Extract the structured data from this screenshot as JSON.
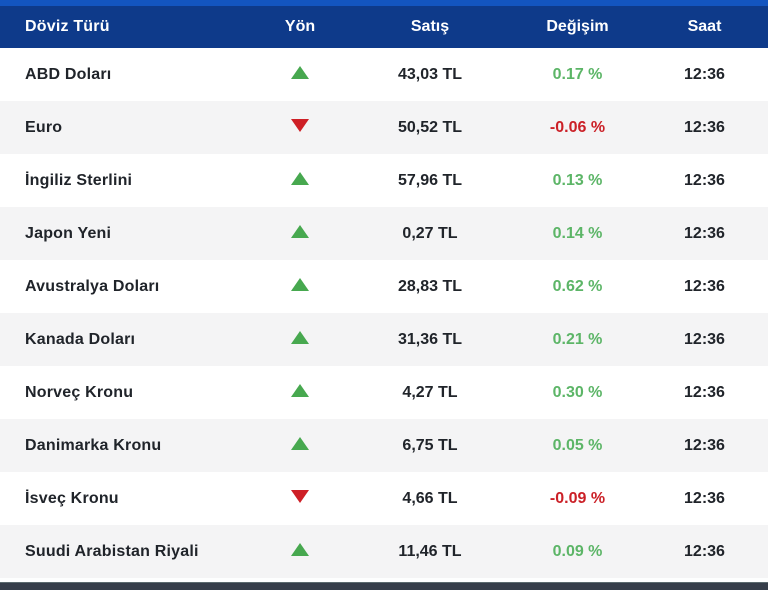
{
  "table": {
    "headers": {
      "currency": "Döviz Türü",
      "direction": "Yön",
      "price": "Satış",
      "change": "Değişim",
      "time": "Saat"
    },
    "rows": [
      {
        "currency": "ABD Doları",
        "direction": "up",
        "price": "43,03 TL",
        "change": "0.17 %",
        "time": "12:36"
      },
      {
        "currency": "Euro",
        "direction": "down",
        "price": "50,52 TL",
        "change": "-0.06 %",
        "time": "12:36"
      },
      {
        "currency": "İngiliz Sterlini",
        "direction": "up",
        "price": "57,96 TL",
        "change": "0.13 %",
        "time": "12:36"
      },
      {
        "currency": "Japon Yeni",
        "direction": "up",
        "price": "0,27 TL",
        "change": "0.14 %",
        "time": "12:36"
      },
      {
        "currency": "Avustralya Doları",
        "direction": "up",
        "price": "28,83 TL",
        "change": "0.62 %",
        "time": "12:36"
      },
      {
        "currency": "Kanada Doları",
        "direction": "up",
        "price": "31,36 TL",
        "change": "0.21 %",
        "time": "12:36"
      },
      {
        "currency": "Norveç Kronu",
        "direction": "up",
        "price": "4,27 TL",
        "change": "0.30 %",
        "time": "12:36"
      },
      {
        "currency": "Danimarka Kronu",
        "direction": "up",
        "price": "6,75 TL",
        "change": "0.05 %",
        "time": "12:36"
      },
      {
        "currency": "İsveç Kronu",
        "direction": "down",
        "price": "4,66 TL",
        "change": "-0.09 %",
        "time": "12:36"
      },
      {
        "currency": "Suudi Arabistan Riyali",
        "direction": "up",
        "price": "11,46 TL",
        "change": "0.09 %",
        "time": "12:36"
      }
    ]
  },
  "colors": {
    "header_bg": "#0e3a8a",
    "top_strip": "#1355c0",
    "row_alt_bg": "#f4f4f5",
    "up_arrow": "#47a84f",
    "up_text": "#5cb567",
    "down_arrow": "#ce1f26",
    "down_text": "#cb2027",
    "text": "#20242a",
    "bottom_bar": "#353d49"
  }
}
